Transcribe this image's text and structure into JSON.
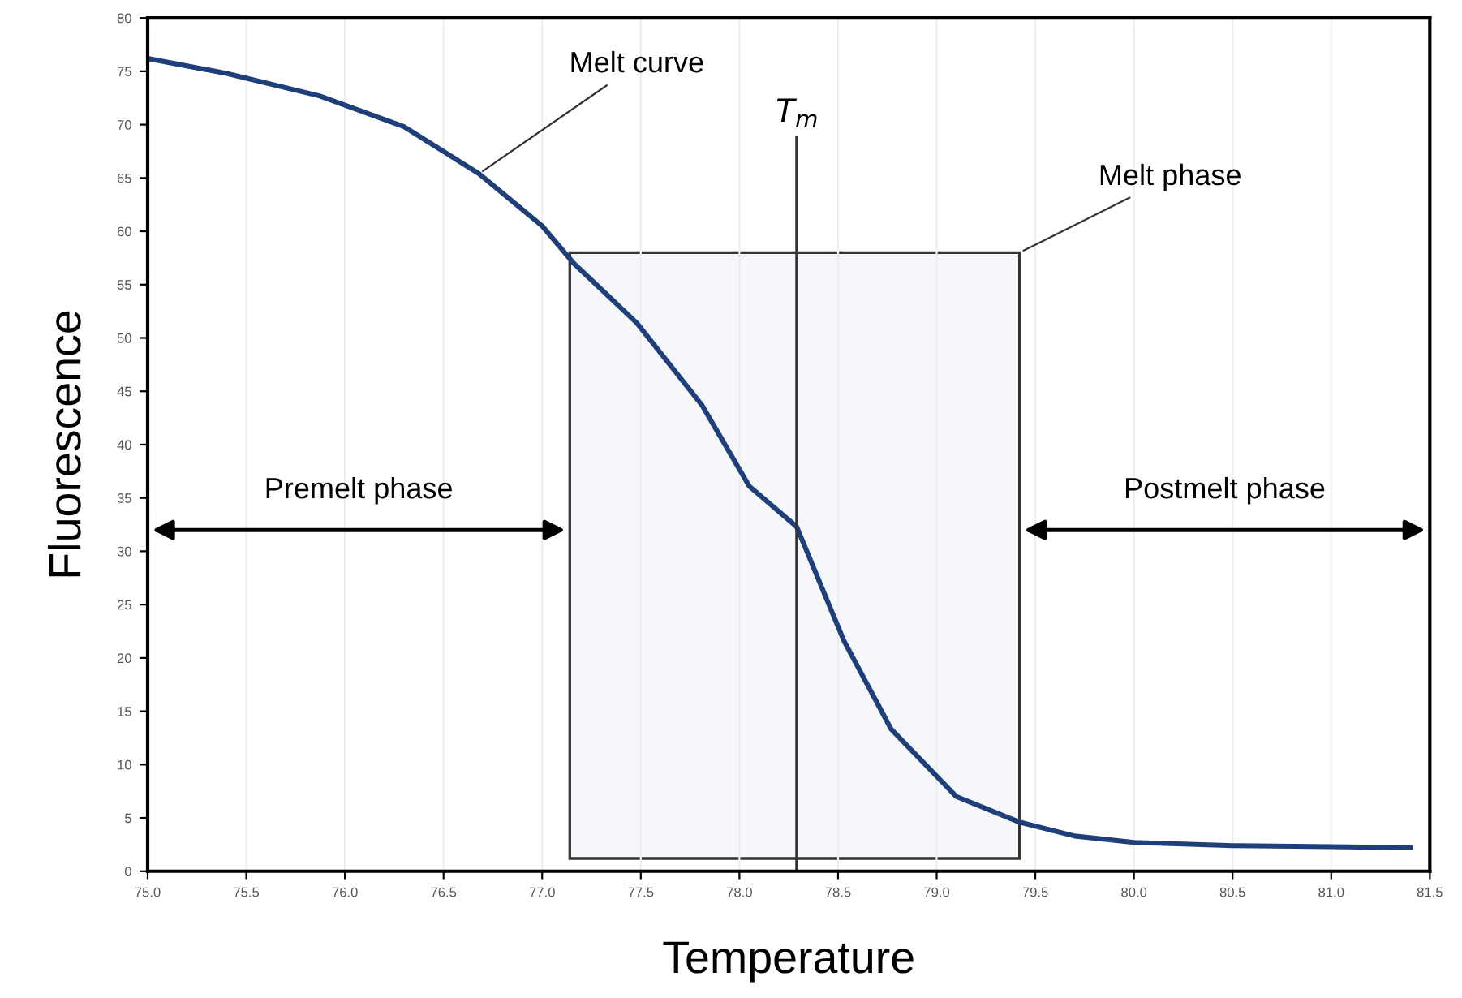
{
  "chart_data": {
    "type": "line",
    "xlabel": "Temperature",
    "ylabel": "Fluorescence",
    "x": [
      75.0,
      75.4,
      75.87,
      76.3,
      76.68,
      77.0,
      77.16,
      77.48,
      77.81,
      78.05,
      78.29,
      78.53,
      78.77,
      79.1,
      79.42,
      79.7,
      80.0,
      80.5,
      81.0,
      81.4
    ],
    "series": [
      {
        "color": "#1f3f7a",
        "values": [
          76.2,
          74.8,
          72.7,
          69.8,
          65.4,
          60.5,
          57.0,
          51.4,
          43.7,
          36.1,
          32.3,
          21.6,
          13.3,
          7.0,
          4.6,
          3.3,
          2.7,
          2.4,
          2.3,
          2.2
        ]
      }
    ],
    "xlim": [
      75.0,
      81.5
    ],
    "ylim": [
      0,
      80
    ],
    "xticks": [
      {
        "value": 75.0,
        "label": "75.0"
      },
      75.5,
      {
        "value": 76.0,
        "label": "76.0"
      },
      76.5,
      {
        "value": 77.0,
        "label": "77.0"
      },
      77.5,
      {
        "value": 78.0,
        "label": "78.0"
      },
      78.5,
      {
        "value": 79.0,
        "label": "79.0"
      },
      79.5,
      {
        "value": 80.0,
        "label": "80.0"
      },
      80.5,
      {
        "value": 81.0,
        "label": "81.0"
      },
      81.5
    ],
    "yticks": [
      0,
      5,
      10,
      15,
      20,
      25,
      30,
      35,
      40,
      45,
      50,
      55,
      60,
      65,
      70,
      75,
      80
    ],
    "grid": "x",
    "ref_lines": [
      {
        "axis": "x",
        "value": 78.29,
        "label": "T$_{m}$"
      }
    ],
    "bands": [
      {
        "axis": "x",
        "from": 77.14,
        "to": 79.42,
        "label": "Melt phase",
        "color": "#f6f7fa"
      }
    ],
    "annotations": [
      {
        "text": "Melt curve",
        "x": 76.68,
        "y": 65.4
      },
      "Premelt phase",
      "Postmelt phase"
    ]
  }
}
